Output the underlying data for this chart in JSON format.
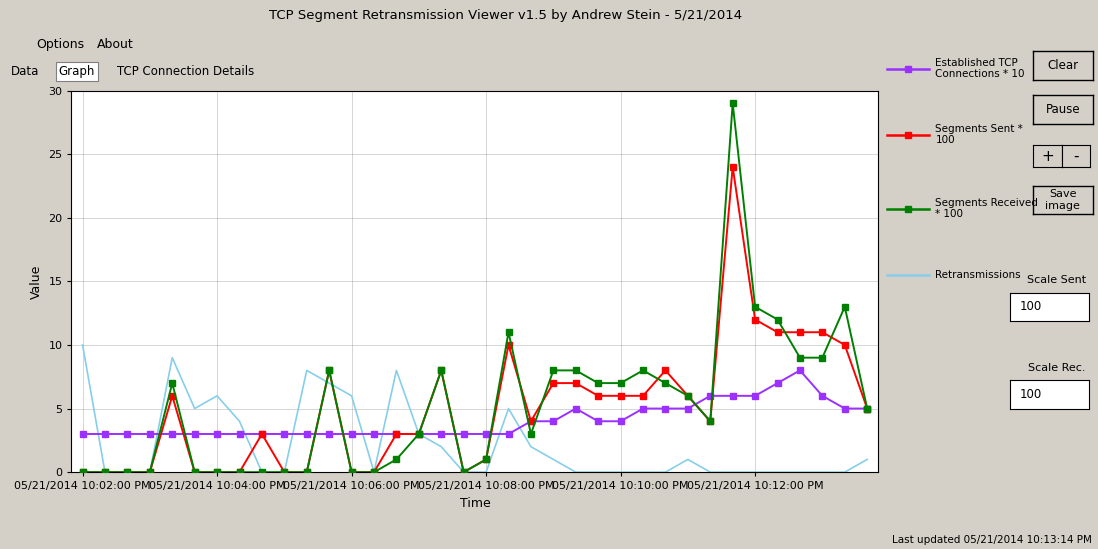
{
  "title": "TCP Segment Retransmission Viewer v1.5 by Andrew Stein - 5/21/2014",
  "xlabel": "Time",
  "ylabel": "Value",
  "ylim": [
    0,
    30
  ],
  "yticks": [
    0,
    5,
    10,
    15,
    20,
    25,
    30
  ],
  "window_bg": "#d4d0c8",
  "plot_bg_color": "#ffffff",
  "x_labels": [
    "05/21/2014 10:02:00 PM",
    "05/21/2014 10:04:00 PM",
    "05/21/2014 10:06:00 PM",
    "05/21/2014 10:08:00 PM",
    "05/21/2014 10:10:00 PM",
    "05/21/2014 10:12:00 PM"
  ],
  "x_tick_positions": [
    0,
    6,
    12,
    18,
    24,
    30
  ],
  "x_max": 35,
  "footer": "Last updated 05/21/2014 10:13:14 PM",
  "established": {
    "label": "Established TCP\nConnections * 10",
    "color": "#9b30ff",
    "x": [
      0,
      1,
      2,
      3,
      4,
      5,
      6,
      7,
      8,
      9,
      10,
      11,
      12,
      13,
      14,
      15,
      16,
      17,
      18,
      19,
      20,
      21,
      22,
      23,
      24,
      25,
      26,
      27,
      28,
      29,
      30,
      31,
      32,
      33,
      34,
      35
    ],
    "y": [
      3,
      3,
      3,
      3,
      3,
      3,
      3,
      3,
      3,
      3,
      3,
      3,
      3,
      3,
      3,
      3,
      3,
      3,
      3,
      3,
      4,
      4,
      5,
      4,
      4,
      5,
      5,
      5,
      6,
      6,
      6,
      7,
      8,
      6,
      5,
      5
    ]
  },
  "sent": {
    "label": "Segments Sent *\n100",
    "color": "#ff0000",
    "x": [
      0,
      1,
      2,
      3,
      4,
      5,
      6,
      7,
      8,
      9,
      10,
      11,
      12,
      13,
      14,
      15,
      16,
      17,
      18,
      19,
      20,
      21,
      22,
      23,
      24,
      25,
      26,
      27,
      28,
      29,
      30,
      31,
      32,
      33,
      34,
      35
    ],
    "y": [
      0,
      0,
      0,
      0,
      6,
      0,
      0,
      0,
      3,
      0,
      0,
      8,
      0,
      0,
      3,
      3,
      8,
      0,
      1,
      10,
      4,
      7,
      7,
      6,
      6,
      6,
      8,
      6,
      4,
      24,
      12,
      11,
      11,
      11,
      10,
      5
    ]
  },
  "received": {
    "label": "Segments Received\n* 100",
    "color": "#008000",
    "x": [
      0,
      1,
      2,
      3,
      4,
      5,
      6,
      7,
      8,
      9,
      10,
      11,
      12,
      13,
      14,
      15,
      16,
      17,
      18,
      19,
      20,
      21,
      22,
      23,
      24,
      25,
      26,
      27,
      28,
      29,
      30,
      31,
      32,
      33,
      34,
      35
    ],
    "y": [
      0,
      0,
      0,
      0,
      7,
      0,
      0,
      0,
      0,
      0,
      0,
      8,
      0,
      0,
      1,
      3,
      8,
      0,
      1,
      11,
      3,
      8,
      8,
      7,
      7,
      8,
      7,
      6,
      4,
      29,
      13,
      12,
      9,
      9,
      13,
      5
    ]
  },
  "retrans": {
    "label": "Retransmissions",
    "color": "#87ceeb",
    "x": [
      0,
      1,
      2,
      3,
      4,
      5,
      6,
      7,
      8,
      9,
      10,
      11,
      12,
      13,
      14,
      15,
      16,
      17,
      18,
      19,
      20,
      21,
      22,
      23,
      24,
      25,
      26,
      27,
      28,
      29,
      30,
      31,
      32,
      33,
      34,
      35
    ],
    "y": [
      10,
      0,
      0,
      0,
      9,
      5,
      6,
      4,
      0,
      0,
      8,
      7,
      6,
      0,
      8,
      3,
      2,
      0,
      0,
      5,
      2,
      1,
      0,
      0,
      0,
      0,
      0,
      1,
      0,
      0,
      0,
      0,
      0,
      0,
      0,
      1
    ]
  }
}
